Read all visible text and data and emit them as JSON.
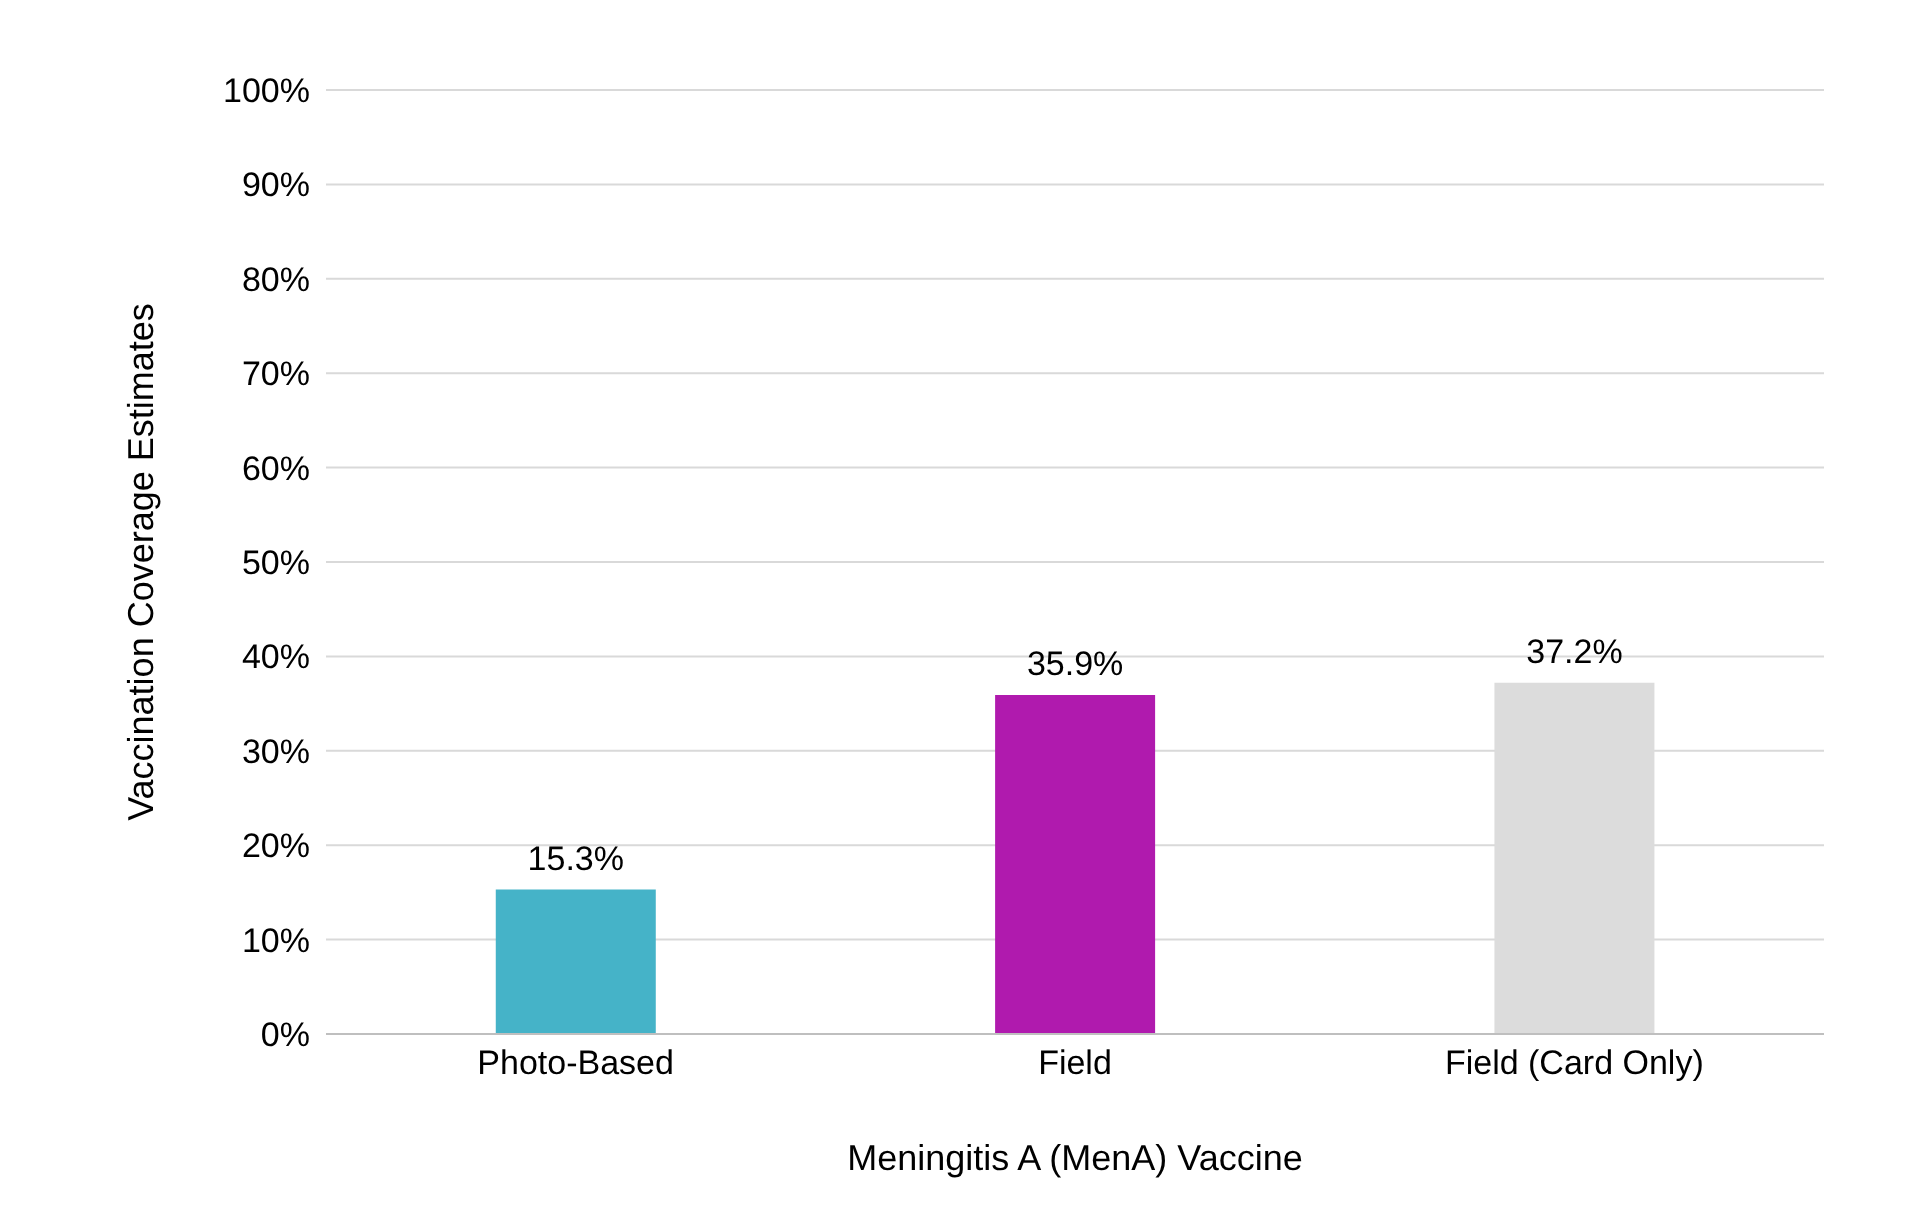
{
  "chart_data": {
    "type": "bar",
    "xlabel": "Meningitis A (MenA) Vaccine",
    "ylabel": "Vaccination Coverage Estimates",
    "categories": [
      "Photo-Based",
      "Field",
      "Field (Card Only)"
    ],
    "values": [
      15.3,
      35.9,
      37.2
    ],
    "colors": [
      "#45b3c8",
      "#b01aae",
      "#dcdcdc"
    ],
    "value_labels": [
      "15.3%",
      "35.9%",
      "37.2%"
    ],
    "ylim": [
      0,
      100
    ],
    "yticks": [
      {
        "value": 0,
        "label": "0%"
      },
      {
        "value": 10,
        "label": "10%"
      },
      {
        "value": 20,
        "label": "20%"
      },
      {
        "value": 30,
        "label": "30%"
      },
      {
        "value": 40,
        "label": "40%"
      },
      {
        "value": 50,
        "label": "50%"
      },
      {
        "value": 60,
        "label": "60%"
      },
      {
        "value": 70,
        "label": "70%"
      },
      {
        "value": 80,
        "label": "80%"
      },
      {
        "value": 90,
        "label": "90%"
      },
      {
        "value": 100,
        "label": "100%"
      }
    ],
    "grid": "y",
    "legend": false
  }
}
